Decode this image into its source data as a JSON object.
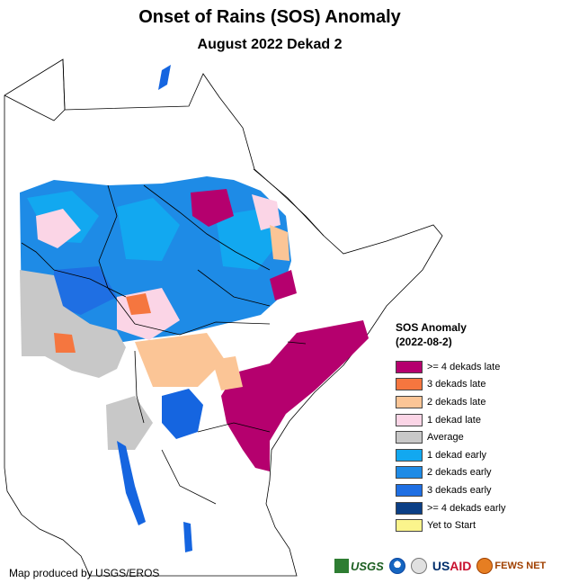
{
  "header": {
    "title": "Onset of Rains (SOS) Anomaly",
    "subtitle": "August 2022 Dekad 2"
  },
  "legend": {
    "title_line1": "SOS Anomaly",
    "title_line2": "(2022-08-2)",
    "items": [
      {
        "label": ">= 4 dekads late",
        "color": "#b5006e"
      },
      {
        "label": "3 dekads late",
        "color": "#f5763f"
      },
      {
        "label": "2 dekads late",
        "color": "#fbc596"
      },
      {
        "label": "1 dekad late",
        "color": "#fbd5e6"
      },
      {
        "label": "Average",
        "color": "#c8c8c8"
      },
      {
        "label": "1 dekad early",
        "color": "#12a8f0"
      },
      {
        "label": "2 dekads early",
        "color": "#1e8be6"
      },
      {
        "label": "3 dekads early",
        "color": "#1f6fe3"
      },
      {
        "label": ">= 4 dekads early",
        "color": "#0b3f86"
      },
      {
        "label": "Yet to Start",
        "color": "#fbf48c"
      }
    ]
  },
  "credit": "Map produced by USGS/EROS",
  "logos": {
    "usgs": "USGS",
    "usaid_a": "US",
    "usaid_b": "AID",
    "fews": "FEWS NET"
  },
  "colors": {
    "land": "#ffffff",
    "border": "#000000",
    "water": "#1565e0"
  }
}
